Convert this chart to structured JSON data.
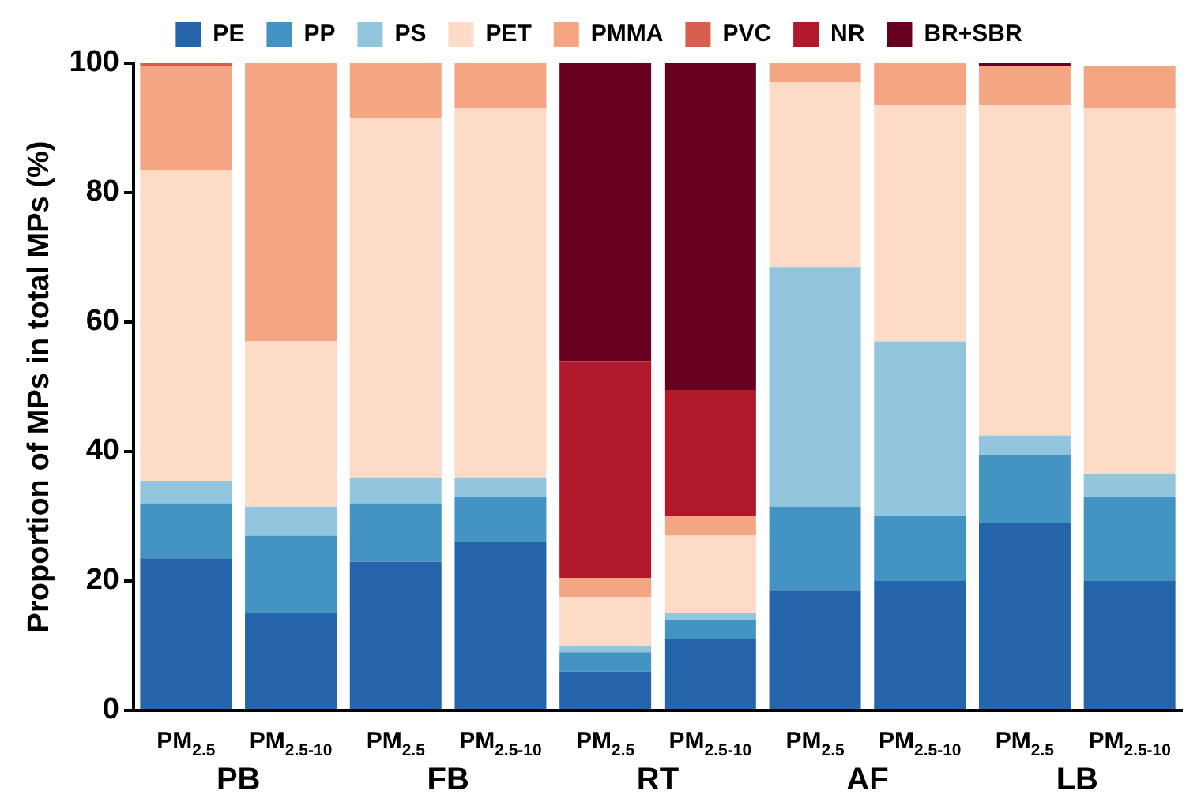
{
  "chart_data": {
    "type": "bar",
    "stacked": true,
    "ylabel": "Proportion of MPs in total MPs (%)",
    "categories": [
      "PM$_{2.5}$",
      "PM$_{2.5-10}$",
      "PM$_{2.5}$",
      "PM$_{2.5-10}$",
      "PM$_{2.5}$",
      "PM$_{2.5-10}$",
      "PM$_{2.5}$",
      "PM$_{2.5-10}$",
      "PM$_{2.5}$",
      "PM$_{2.5-10}$"
    ],
    "annotations": [
      "PB",
      "FB",
      "RT",
      "AF",
      "LB"
    ],
    "series": [
      {
        "name": "PE",
        "color": "#2364ab",
        "values": [
          23.5,
          15,
          23,
          26,
          6,
          11,
          18.5,
          20,
          29,
          20
        ]
      },
      {
        "name": "PP",
        "color": "#4393c3",
        "values": [
          8.5,
          12,
          9,
          7,
          3,
          3,
          13,
          10,
          10.5,
          13
        ]
      },
      {
        "name": "PS",
        "color": "#92c5de",
        "values": [
          3.5,
          4.5,
          4,
          3,
          1,
          1,
          37,
          27,
          3,
          3.5
        ]
      },
      {
        "name": "PET",
        "color": "#fddbc7",
        "values": [
          48,
          25.5,
          55.5,
          57,
          7.5,
          12,
          28.5,
          36.5,
          51,
          56.5
        ]
      },
      {
        "name": "PMMA",
        "color": "#f4a582",
        "values": [
          16,
          43,
          8.5,
          7,
          3,
          3,
          3,
          6.5,
          6,
          6.5
        ]
      },
      {
        "name": "PVC",
        "color": "#d6604d",
        "values": [
          0.5,
          0,
          0,
          0,
          0,
          0,
          0,
          0,
          0,
          0
        ]
      },
      {
        "name": "NR",
        "color": "#b2182b",
        "values": [
          0,
          0,
          0,
          0,
          33.5,
          19.5,
          0,
          0,
          0,
          0
        ]
      },
      {
        "name": "BR+SBR",
        "color": "#67001f",
        "values": [
          0,
          0,
          0,
          0,
          46,
          50.5,
          0,
          0,
          0.5,
          0
        ]
      }
    ],
    "ylim": [
      0,
      100
    ],
    "yticks": [
      0,
      20,
      40,
      60,
      80,
      100
    ],
    "grid": false,
    "legend": "top"
  }
}
